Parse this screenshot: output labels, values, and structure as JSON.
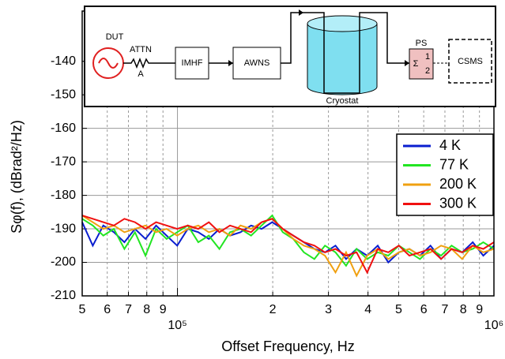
{
  "chart_data": {
    "type": "line",
    "xlabel": "Offset Frequency, Hz",
    "ylabel": "Sφ(f), (dBrad²/Hz)",
    "xscale": "log",
    "xlim": [
      50000,
      1000000
    ],
    "ylim": [
      -210,
      -125
    ],
    "xticks": [
      {
        "value": 50000,
        "label": "5"
      },
      {
        "value": 60000,
        "label": "6"
      },
      {
        "value": 70000,
        "label": "7"
      },
      {
        "value": 80000,
        "label": "8"
      },
      {
        "value": 90000,
        "label": "9"
      },
      {
        "value": 100000,
        "label": "10⁵"
      },
      {
        "value": 200000,
        "label": "2"
      },
      {
        "value": 300000,
        "label": "3"
      },
      {
        "value": 400000,
        "label": "4"
      },
      {
        "value": 500000,
        "label": "5"
      },
      {
        "value": 600000,
        "label": "6"
      },
      {
        "value": 700000,
        "label": "7"
      },
      {
        "value": 800000,
        "label": "8"
      },
      {
        "value": 900000,
        "label": "9"
      },
      {
        "value": 1000000,
        "label": "10⁶"
      }
    ],
    "yticks": [
      -210,
      -200,
      -190,
      -180,
      -170,
      -160,
      -150,
      -140
    ],
    "grid": true,
    "legend": "upper right",
    "x": [
      50000,
      53990,
      58300,
      62950,
      67980,
      73400,
      79260,
      85590,
      92420,
      99800,
      107770,
      116370,
      125660,
      135690,
      146520,
      158210,
      170840,
      184480,
      199200,
      215100,
      232270,
      250810,
      270830,
      292450,
      315790,
      341000,
      368220,
      397610,
      429350,
      463620,
      500630,
      540590,
      583740,
      630330,
      680640,
      734970,
      793640,
      856990,
      925390,
      1000000
    ],
    "series": [
      {
        "name": "4 K",
        "color": "#0a1ecf",
        "values": [
          -188,
          -195,
          -189,
          -191,
          -194,
          -190,
          -193,
          -189,
          -192,
          -195,
          -190,
          -191,
          -193,
          -190,
          -192,
          -191,
          -189,
          -190,
          -188,
          -190,
          -192,
          -194,
          -196,
          -197,
          -195,
          -199,
          -196,
          -198,
          -195,
          -200,
          -197,
          -196,
          -198,
          -195,
          -199,
          -196,
          -197,
          -194,
          -198,
          -195
        ]
      },
      {
        "name": "77 K",
        "color": "#22e522",
        "values": [
          -187,
          -189,
          -192,
          -190,
          -196,
          -191,
          -198,
          -190,
          -193,
          -191,
          -189,
          -194,
          -192,
          -196,
          -191,
          -190,
          -192,
          -189,
          -186,
          -191,
          -193,
          -197,
          -199,
          -195,
          -197,
          -201,
          -196,
          -199,
          -197,
          -198,
          -195,
          -197,
          -199,
          -196,
          -198,
          -195,
          -197,
          -196,
          -194,
          -196
        ]
      },
      {
        "name": "200 K",
        "color": "#f0a010",
        "values": [
          -186,
          -188,
          -190,
          -189,
          -191,
          -190,
          -189,
          -191,
          -190,
          -192,
          -190,
          -189,
          -191,
          -190,
          -192,
          -189,
          -190,
          -188,
          -187,
          -190,
          -193,
          -195,
          -196,
          -198,
          -203,
          -197,
          -204,
          -198,
          -196,
          -199,
          -197,
          -196,
          -198,
          -197,
          -195,
          -196,
          -199,
          -195,
          -197,
          -196
        ]
      },
      {
        "name": "300 K",
        "color": "#f01010",
        "values": [
          -186,
          -187,
          -188,
          -189,
          -187,
          -188,
          -190,
          -188,
          -189,
          -190,
          -189,
          -190,
          -188,
          -191,
          -189,
          -190,
          -191,
          -188,
          -187,
          -190,
          -192,
          -194,
          -195,
          -197,
          -196,
          -198,
          -197,
          -203,
          -196,
          -197,
          -195,
          -198,
          -197,
          -196,
          -199,
          -196,
          -197,
          -195,
          -196,
          -194
        ]
      }
    ],
    "inset": {
      "dut": "DUT",
      "attn": "ATTN",
      "a": "A",
      "imhf": "IMHF",
      "awns": "AWNS",
      "cryostat": "Cryostat",
      "ps": "PS",
      "sigma": "Σ",
      "in1": "1",
      "in2": "2",
      "csms": "CSMS"
    }
  }
}
